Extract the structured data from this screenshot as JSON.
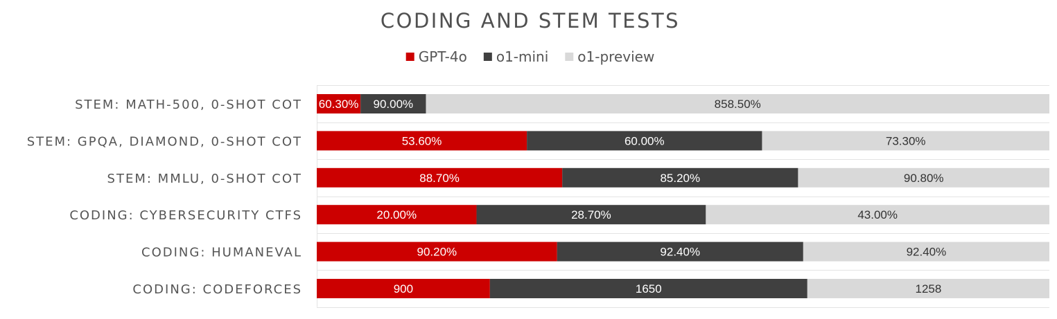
{
  "chart_data": {
    "type": "bar",
    "orientation": "horizontal",
    "stacked": "percent",
    "title": "CODING AND STEM TESTS",
    "categories": [
      "STEM: MATH-500, 0-SHOT COT",
      "STEM: GPQA, DIAMOND, 0-SHOT COT",
      "STEM: MMLU, 0-SHOT COT",
      "CODING: CYBERSECURITY CTFS",
      "CODING: HUMANEVAL",
      "CODING: CODEFORCES"
    ],
    "series": [
      {
        "name": "GPT-4o",
        "color": "#cc0000",
        "label_color": "#ffffff",
        "values": [
          60.3,
          53.6,
          88.7,
          20.0,
          90.2,
          900
        ],
        "labels": [
          "60.30%",
          "53.60%",
          "88.70%",
          "20.00%",
          "90.20%",
          "900"
        ]
      },
      {
        "name": "o1-mini",
        "color": "#404040",
        "label_color": "#ffffff",
        "values": [
          90.0,
          60.0,
          85.2,
          28.7,
          92.4,
          1650
        ],
        "labels": [
          "90.00%",
          "60.00%",
          "85.20%",
          "28.70%",
          "92.40%",
          "1650"
        ]
      },
      {
        "name": "o1-preview",
        "color": "#d9d9d9",
        "label_color": "#333333",
        "values": [
          858.5,
          73.3,
          90.8,
          43.0,
          92.4,
          1258
        ],
        "labels": [
          "858.50%",
          "73.30%",
          "90.80%",
          "43.00%",
          "92.40%",
          "1258"
        ]
      }
    ],
    "legend_position": "top-center",
    "grid": true
  }
}
